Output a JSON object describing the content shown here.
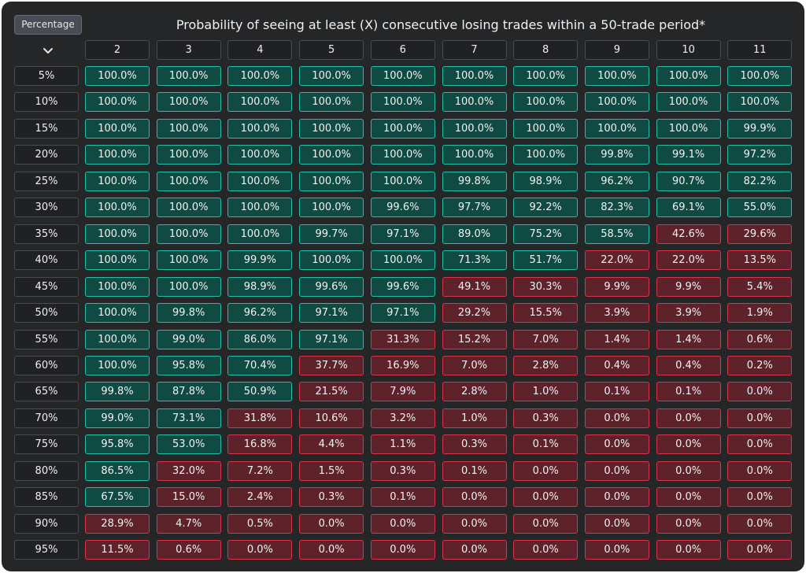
{
  "header": {
    "percentage_button": "Percentage",
    "title": "Probability of seeing at least (X) consecutive losing trades within a 50-trade period*",
    "dropdown_icon": "chevron-down-icon"
  },
  "colors": {
    "panel": "#252628",
    "high_fill": "#0f4a43",
    "high_border": "#22bfa9",
    "low_fill": "#5e222a",
    "low_border": "#d9364b"
  },
  "chart_data": {
    "type": "heatmap",
    "title": "Probability of seeing at least (X) consecutive losing trades within a 50-trade period*",
    "x": [
      "2",
      "3",
      "4",
      "5",
      "6",
      "7",
      "8",
      "9",
      "10",
      "11"
    ],
    "y": [
      "5%",
      "10%",
      "15%",
      "20%",
      "25%",
      "30%",
      "35%",
      "40%",
      "45%",
      "50%",
      "55%",
      "60%",
      "65%",
      "70%",
      "75%",
      "80%",
      "85%",
      "90%",
      "95%"
    ],
    "values": [
      [
        "100.0%",
        "100.0%",
        "100.0%",
        "100.0%",
        "100.0%",
        "100.0%",
        "100.0%",
        "100.0%",
        "100.0%",
        "100.0%"
      ],
      [
        "100.0%",
        "100.0%",
        "100.0%",
        "100.0%",
        "100.0%",
        "100.0%",
        "100.0%",
        "100.0%",
        "100.0%",
        "100.0%"
      ],
      [
        "100.0%",
        "100.0%",
        "100.0%",
        "100.0%",
        "100.0%",
        "100.0%",
        "100.0%",
        "100.0%",
        "100.0%",
        "99.9%"
      ],
      [
        "100.0%",
        "100.0%",
        "100.0%",
        "100.0%",
        "100.0%",
        "100.0%",
        "100.0%",
        "99.8%",
        "99.1%",
        "97.2%"
      ],
      [
        "100.0%",
        "100.0%",
        "100.0%",
        "100.0%",
        "100.0%",
        "99.8%",
        "98.9%",
        "96.2%",
        "90.7%",
        "82.2%"
      ],
      [
        "100.0%",
        "100.0%",
        "100.0%",
        "100.0%",
        "99.6%",
        "97.7%",
        "92.2%",
        "82.3%",
        "69.1%",
        "55.0%"
      ],
      [
        "100.0%",
        "100.0%",
        "100.0%",
        "99.7%",
        "97.1%",
        "89.0%",
        "75.2%",
        "58.5%",
        "42.6%",
        "29.6%"
      ],
      [
        "100.0%",
        "100.0%",
        "99.9%",
        "100.0%",
        "100.0%",
        "71.3%",
        "51.7%",
        "22.0%",
        "22.0%",
        "13.5%"
      ],
      [
        "100.0%",
        "100.0%",
        "98.9%",
        "99.6%",
        "99.6%",
        "49.1%",
        "30.3%",
        "9.9%",
        "9.9%",
        "5.4%"
      ],
      [
        "100.0%",
        "99.8%",
        "96.2%",
        "97.1%",
        "97.1%",
        "29.2%",
        "15.5%",
        "3.9%",
        "3.9%",
        "1.9%"
      ],
      [
        "100.0%",
        "99.0%",
        "86.0%",
        "97.1%",
        "31.3%",
        "15.2%",
        "7.0%",
        "1.4%",
        "1.4%",
        "0.6%"
      ],
      [
        "100.0%",
        "95.8%",
        "70.4%",
        "37.7%",
        "16.9%",
        "7.0%",
        "2.8%",
        "0.4%",
        "0.4%",
        "0.2%"
      ],
      [
        "99.8%",
        "87.8%",
        "50.9%",
        "21.5%",
        "7.9%",
        "2.8%",
        "1.0%",
        "0.1%",
        "0.1%",
        "0.0%"
      ],
      [
        "99.0%",
        "73.1%",
        "31.8%",
        "10.6%",
        "3.2%",
        "1.0%",
        "0.3%",
        "0.0%",
        "0.0%",
        "0.0%"
      ],
      [
        "95.8%",
        "53.0%",
        "16.8%",
        "4.4%",
        "1.1%",
        "0.3%",
        "0.1%",
        "0.0%",
        "0.0%",
        "0.0%"
      ],
      [
        "86.5%",
        "32.0%",
        "7.2%",
        "1.5%",
        "0.3%",
        "0.1%",
        "0.0%",
        "0.0%",
        "0.0%",
        "0.0%"
      ],
      [
        "67.5%",
        "15.0%",
        "2.4%",
        "0.3%",
        "0.1%",
        "0.0%",
        "0.0%",
        "0.0%",
        "0.0%",
        "0.0%"
      ],
      [
        "28.9%",
        "4.7%",
        "0.5%",
        "0.0%",
        "0.0%",
        "0.0%",
        "0.0%",
        "0.0%",
        "0.0%",
        "0.0%"
      ],
      [
        "11.5%",
        "0.6%",
        "0.0%",
        "0.0%",
        "0.0%",
        "0.0%",
        "0.0%",
        "0.0%",
        "0.0%",
        "0.0%"
      ]
    ],
    "high_threshold_percent": 50
  }
}
